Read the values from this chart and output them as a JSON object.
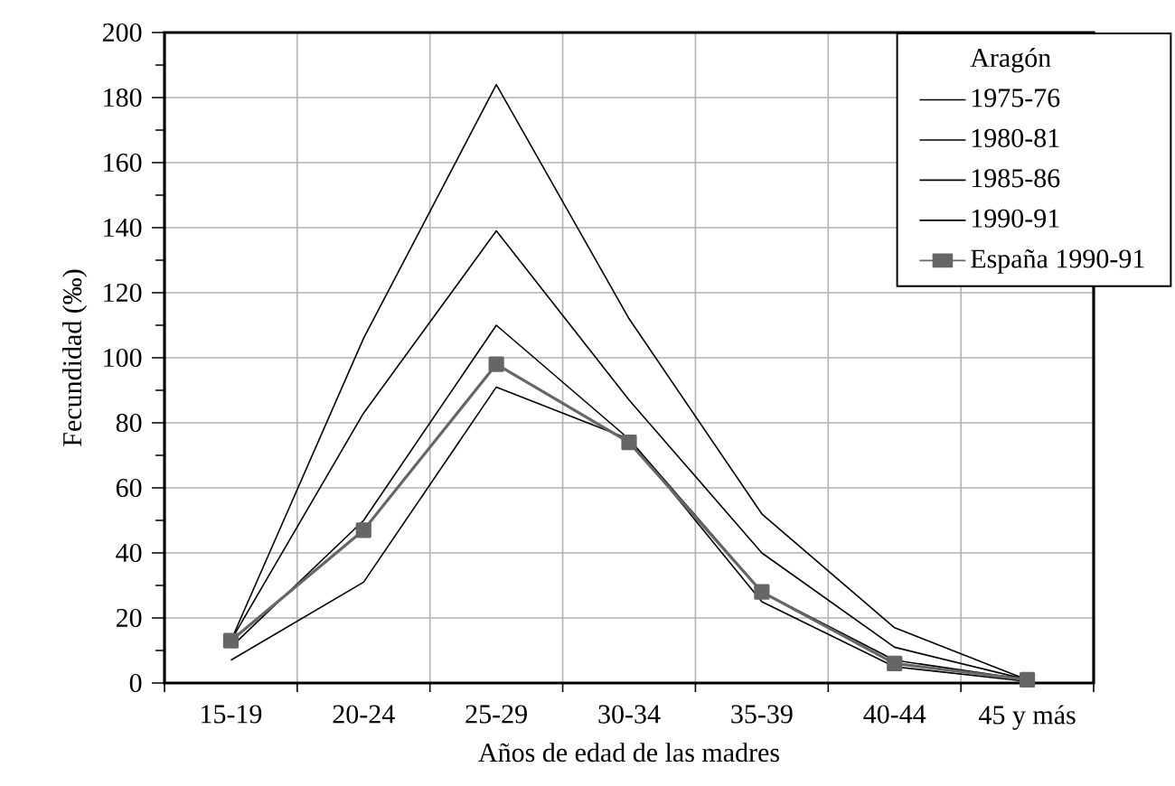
{
  "chart_data": {
    "type": "line",
    "xlabel": "Años de edad de las madres",
    "ylabel": "Fecundidad (‰)",
    "categories": [
      "15-19",
      "20-24",
      "25-29",
      "30-34",
      "35-39",
      "40-44",
      "45 y más"
    ],
    "ylim": [
      0,
      200
    ],
    "yticks": [
      0,
      20,
      40,
      60,
      80,
      100,
      120,
      140,
      160,
      180,
      200
    ],
    "grid": true,
    "legend": "top right",
    "legend_title": "Aragón",
    "line_style": "solid",
    "series": [
      {
        "name": "1975-76",
        "color": "#000000",
        "marker": "none",
        "values": [
          13,
          106,
          184,
          112,
          52,
          17,
          1
        ]
      },
      {
        "name": "1980-81",
        "color": "#000000",
        "marker": "none",
        "values": [
          13,
          83,
          139,
          87,
          40,
          11,
          1
        ]
      },
      {
        "name": "1985-86",
        "color": "#000000",
        "marker": "none",
        "values": [
          11,
          50,
          110,
          75,
          28,
          7,
          1
        ]
      },
      {
        "name": "1990-91",
        "color": "#000000",
        "marker": "none",
        "values": [
          7,
          31,
          91,
          75,
          25,
          5,
          0.5
        ]
      },
      {
        "name": "España 1990-91",
        "color": "#666666",
        "marker": "square",
        "values": [
          13,
          47,
          98,
          74,
          28,
          6,
          1
        ]
      }
    ]
  }
}
